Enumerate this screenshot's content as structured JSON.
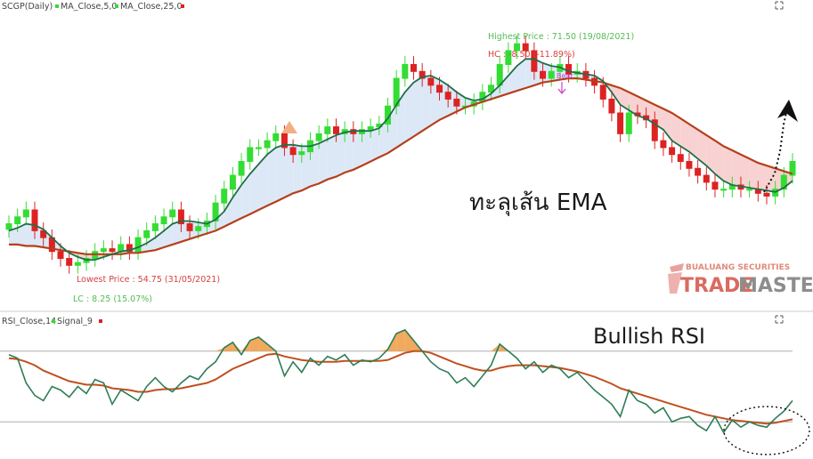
{
  "colors": {
    "up": "#33dd33",
    "down": "#dd2222",
    "ma_fast": "#1f6e4a",
    "ma_slow": "#b5401a",
    "fill_bull": "#dde8f7",
    "fill_bear": "#f8d2d2",
    "rsi": "#2e7d55",
    "signal": "#c0501f",
    "overbought_fill": "#f0a04b",
    "grid": "#b0b0b0",
    "label_green": "#55bb55",
    "label_red": "#d94040",
    "bear_tag": "#d03fd0"
  },
  "header": {
    "symbol": "SCGP(Daily)",
    "ma5": "MA_Close,5,0",
    "ma25": "MA_Close,25,0",
    "rsi_title": "RSI_Close,14",
    "signal_title": "Signal_9"
  },
  "annotations": {
    "highest": "Highest Price : 71.50 (19/08/2021)",
    "hc": "HC : -8.50 (-11.89%)",
    "lowest": "Lowest Price : 54.75 (31/05/2021)",
    "lc": "LC : 8.25 (15.07%)",
    "bear": "Bear",
    "ema_text": "ทะลุเส้น EMA",
    "rsi_text": "Bullish RSI"
  },
  "watermark": {
    "company": "BUALUANG SECURITIES",
    "brand_a": "TRADE",
    "brand_b": "MASTER"
  },
  "chart_data": [
    {
      "type": "candlestick",
      "series_name": "SCGP(Daily)",
      "ylim": [
        52,
        73
      ],
      "closes": [
        58.0,
        58.5,
        59.0,
        57.5,
        57.0,
        56.0,
        55.5,
        55.0,
        55.2,
        55.5,
        56.0,
        56.2,
        56.0,
        56.5,
        56.0,
        57.0,
        57.5,
        58.0,
        58.5,
        59.0,
        58.0,
        57.5,
        57.8,
        58.2,
        59.5,
        60.5,
        61.5,
        62.5,
        63.5,
        63.5,
        64.0,
        64.5,
        63.5,
        63.0,
        63.2,
        64.0,
        64.5,
        65.0,
        64.5,
        64.8,
        64.5,
        64.8,
        65.0,
        65.2,
        66.5,
        68.5,
        69.5,
        69.0,
        68.5,
        68.0,
        67.5,
        67.0,
        66.5,
        66.5,
        66.8,
        67.5,
        68.0,
        69.5,
        70.5,
        71.0,
        70.5,
        69.0,
        68.5,
        69.0,
        69.5,
        68.8,
        69.0,
        68.5,
        68.0,
        67.0,
        66.0,
        64.5,
        66.0,
        65.8,
        65.5,
        64.0,
        63.5,
        63.0,
        62.5,
        62.0,
        61.5,
        61.0,
        60.5,
        60.5,
        60.8,
        60.5,
        60.5,
        60.2,
        60.0,
        60.5,
        61.5,
        62.5
      ],
      "ma5": [
        57.5,
        57.7,
        58.0,
        57.9,
        57.6,
        57.0,
        56.4,
        55.9,
        55.6,
        55.4,
        55.4,
        55.6,
        55.8,
        56.0,
        56.1,
        56.3,
        56.6,
        57.0,
        57.5,
        58.0,
        58.2,
        58.2,
        58.1,
        58.0,
        58.3,
        58.9,
        59.9,
        60.8,
        61.6,
        62.3,
        63.0,
        63.5,
        63.7,
        63.7,
        63.6,
        63.6,
        63.8,
        64.1,
        64.4,
        64.6,
        64.7,
        64.7,
        64.7,
        64.9,
        65.6,
        66.6,
        67.5,
        68.2,
        68.6,
        68.7,
        68.4,
        68.0,
        67.5,
        67.1,
        66.9,
        67.0,
        67.4,
        68.0,
        68.7,
        69.4,
        69.9,
        69.9,
        69.6,
        69.4,
        69.3,
        69.0,
        68.9,
        68.8,
        68.7,
        68.3,
        67.5,
        66.6,
        66.2,
        65.8,
        65.6,
        65.2,
        64.8,
        64.0,
        63.6,
        63.2,
        62.7,
        62.2,
        61.6,
        61.1,
        60.8,
        60.7,
        60.6,
        60.5,
        60.4,
        60.3,
        60.6,
        61.1
      ],
      "ma25": [
        56.5,
        56.5,
        56.4,
        56.4,
        56.3,
        56.2,
        56.1,
        56.0,
        55.9,
        55.8,
        55.8,
        55.8,
        55.8,
        55.8,
        55.9,
        55.9,
        56.0,
        56.1,
        56.3,
        56.5,
        56.7,
        56.9,
        57.1,
        57.3,
        57.5,
        57.8,
        58.1,
        58.4,
        58.7,
        59.0,
        59.3,
        59.6,
        59.9,
        60.2,
        60.4,
        60.7,
        60.9,
        61.2,
        61.4,
        61.7,
        61.9,
        62.2,
        62.5,
        62.8,
        63.1,
        63.5,
        63.9,
        64.3,
        64.7,
        65.1,
        65.5,
        65.8,
        66.1,
        66.4,
        66.6,
        66.8,
        67.0,
        67.2,
        67.4,
        67.6,
        67.8,
        68.0,
        68.2,
        68.3,
        68.4,
        68.5,
        68.5,
        68.4,
        68.3,
        68.2,
        68.0,
        67.8,
        67.5,
        67.2,
        66.9,
        66.6,
        66.3,
        66.0,
        65.6,
        65.2,
        64.8,
        64.4,
        64.0,
        63.6,
        63.3,
        63.0,
        62.7,
        62.4,
        62.2,
        62.0,
        61.8,
        61.6
      ]
    },
    {
      "type": "line",
      "series": [
        {
          "name": "RSI_Close,14"
        },
        {
          "name": "Signal_9"
        }
      ],
      "ylim": [
        10,
        90
      ],
      "gridlines": [
        70,
        30
      ],
      "rsi": [
        68.0,
        66.0,
        52.0,
        45.0,
        42.0,
        50.0,
        48.0,
        44.0,
        50.0,
        46.0,
        54.0,
        52.0,
        40.0,
        48.0,
        45.0,
        42.0,
        50.0,
        55.0,
        50.0,
        47.0,
        52.0,
        56.0,
        54.0,
        60.0,
        64.0,
        72.0,
        75.0,
        68.0,
        76.0,
        78.0,
        74.0,
        70.0,
        56.0,
        64.0,
        58.0,
        66.0,
        62.0,
        67.0,
        65.0,
        68.0,
        62.0,
        65.0,
        64.0,
        66.0,
        71.0,
        80.0,
        82.0,
        76.0,
        70.0,
        64.0,
        60.0,
        58.0,
        52.0,
        55.0,
        50.0,
        56.0,
        62.0,
        74.0,
        70.0,
        66.0,
        60.0,
        64.0,
        58.0,
        62.0,
        60.0,
        55.0,
        58.0,
        53.0,
        48.0,
        44.0,
        40.0,
        33.0,
        48.0,
        42.0,
        40.0,
        35.0,
        38.0,
        30.0,
        32.0,
        33.0,
        28.0,
        25.0,
        33.0,
        24.0,
        31.0,
        27.0,
        30.0,
        28.0,
        27.0,
        32.0,
        36.0,
        42.0
      ],
      "signal": [
        66.0,
        65.5,
        64.0,
        62.0,
        59.0,
        57.0,
        55.0,
        53.0,
        52.0,
        51.0,
        51.0,
        50.5,
        49.0,
        48.5,
        48.0,
        47.0,
        47.0,
        48.0,
        48.5,
        48.5,
        49.0,
        50.0,
        51.0,
        52.0,
        54.0,
        57.0,
        60.0,
        62.0,
        64.0,
        66.0,
        68.0,
        68.5,
        67.0,
        66.0,
        65.0,
        64.5,
        64.0,
        64.0,
        64.0,
        64.5,
        64.5,
        64.5,
        64.5,
        64.5,
        65.0,
        67.0,
        69.0,
        70.0,
        70.0,
        69.0,
        67.0,
        65.0,
        63.0,
        61.5,
        60.0,
        59.0,
        59.0,
        60.5,
        61.5,
        62.0,
        62.0,
        62.0,
        61.5,
        61.0,
        60.5,
        59.5,
        58.5,
        57.0,
        55.5,
        53.5,
        51.5,
        49.0,
        47.5,
        46.0,
        44.5,
        43.0,
        41.5,
        40.0,
        38.5,
        37.0,
        35.5,
        34.0,
        33.0,
        32.0,
        31.0,
        30.5,
        30.0,
        29.5,
        29.0,
        29.5,
        30.5,
        31.5
      ]
    }
  ]
}
